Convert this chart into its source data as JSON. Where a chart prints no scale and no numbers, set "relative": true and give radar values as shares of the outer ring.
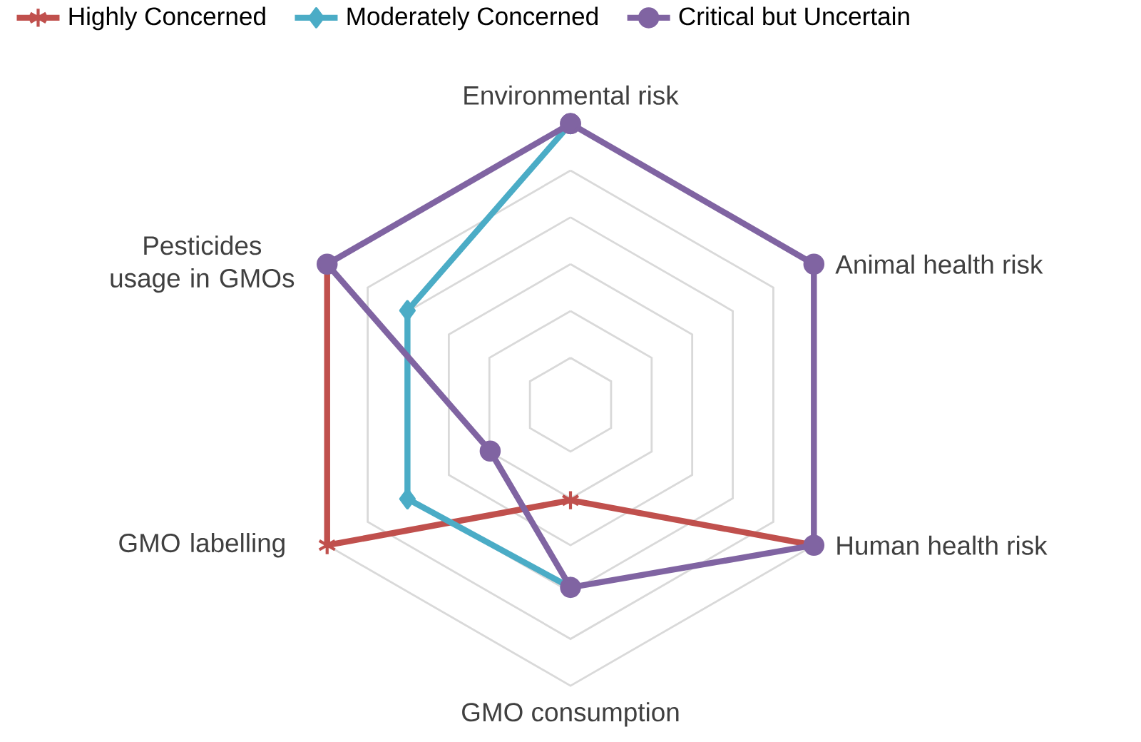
{
  "chart_data": {
    "type": "radar",
    "relative": true,
    "grid": true,
    "legend": "top left",
    "categories": [
      "Environmental risk",
      "Animal health risk",
      "Human health risk",
      "GMO consumption",
      "GMO labelling",
      "Pesticides usage in GMOs"
    ],
    "series": [
      {
        "name": "Highly Concerned",
        "color": "#c0504d",
        "marker": "star",
        "values": [
          null,
          null,
          1,
          0.34,
          1,
          1
        ]
      },
      {
        "name": "Moderately Concerned",
        "color": "#4bacc6",
        "marker": "diamond",
        "values": [
          1,
          null,
          null,
          0.65,
          0.67,
          0.67
        ]
      },
      {
        "name": "Critical but Uncertain",
        "color": "#8064a2",
        "marker": "circle",
        "values": [
          1,
          1,
          1,
          0.65,
          0.33,
          1
        ]
      }
    ]
  }
}
